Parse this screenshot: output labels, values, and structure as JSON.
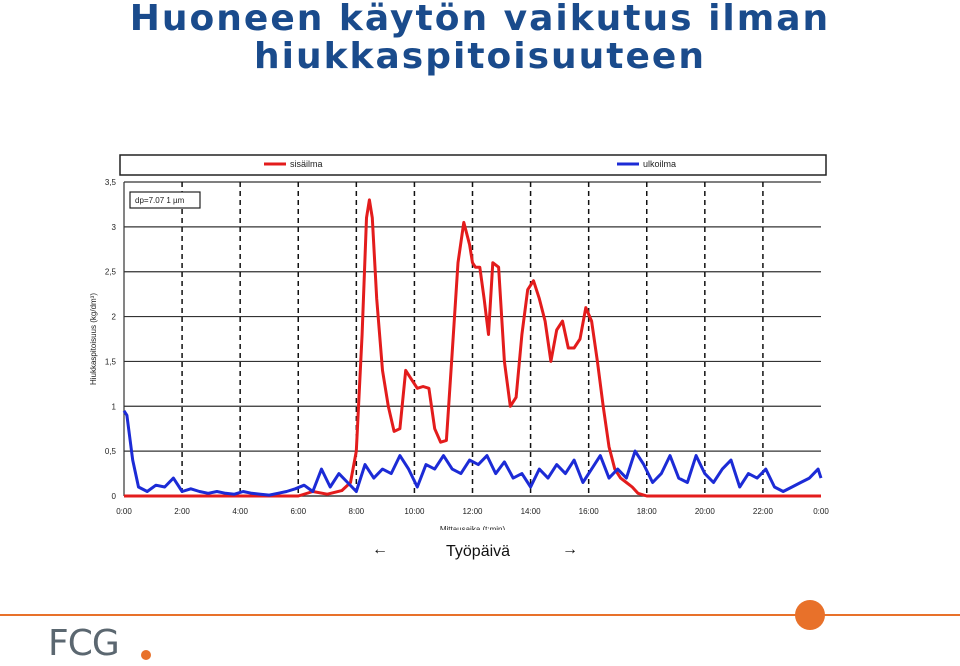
{
  "slide": {
    "title_line1": "Huoneen käytön vaikutus ilman",
    "title_line2": "hiukkaspitoisuuteen",
    "caption": "Työpäivä",
    "left_arrow": "←",
    "right_arrow": "→",
    "logo_text": "FCG"
  },
  "colors": {
    "title": "#1a4b8c",
    "sisailma": "#e31c1c",
    "ulkoilma": "#1c2bd6",
    "accent": "#e8712a"
  },
  "chart_data": {
    "type": "line",
    "ylabel": "Hiukkaspitoisuus (kg/dm³)",
    "xlabel": "Mittausaika (t:min)",
    "annotation": "dp=7.07 1 µm",
    "ylim": [
      0,
      3.5
    ],
    "xlim": [
      0,
      24
    ],
    "yticks": [
      "0",
      "0,5",
      "1",
      "1,5",
      "2",
      "2,5",
      "3",
      "3,5"
    ],
    "xticks": [
      "0:00",
      "2:00",
      "4:00",
      "6:00",
      "8:00",
      "10:00",
      "12:00",
      "14:00",
      "16:00",
      "18:00",
      "20:00",
      "22:00",
      "0:00"
    ],
    "grid": "horizontal solid, vertical dashed every 2 h",
    "legend_position": "top",
    "series": [
      {
        "name": "sisäilma",
        "color": "#e31c1c",
        "x": [
          0,
          2,
          4,
          5.5,
          6,
          6.5,
          7,
          7.5,
          7.8,
          8.0,
          8.2,
          8.35,
          8.45,
          8.55,
          8.7,
          8.9,
          9.1,
          9.3,
          9.5,
          9.7,
          9.9,
          10.1,
          10.3,
          10.5,
          10.7,
          10.9,
          11.1,
          11.3,
          11.5,
          11.7,
          11.9,
          12.0,
          12.1,
          12.25,
          12.4,
          12.55,
          12.7,
          12.9,
          13.1,
          13.3,
          13.5,
          13.7,
          13.9,
          14.1,
          14.3,
          14.5,
          14.7,
          14.9,
          15.1,
          15.3,
          15.5,
          15.7,
          15.9,
          16.1,
          16.3,
          16.5,
          16.7,
          16.9,
          17.1,
          17.3,
          17.5,
          17.7,
          18,
          19,
          20,
          21,
          22,
          23,
          24
        ],
        "y": [
          0,
          0,
          0,
          0,
          0,
          0.05,
          0.02,
          0.06,
          0.15,
          0.5,
          1.8,
          3.1,
          3.3,
          3.1,
          2.2,
          1.4,
          1.0,
          0.72,
          0.75,
          1.4,
          1.3,
          1.2,
          1.22,
          1.2,
          0.75,
          0.6,
          0.62,
          1.6,
          2.6,
          3.05,
          2.8,
          2.6,
          2.55,
          2.55,
          2.2,
          1.8,
          2.6,
          2.55,
          1.5,
          1.0,
          1.1,
          1.8,
          2.3,
          2.4,
          2.2,
          1.95,
          1.5,
          1.85,
          1.95,
          1.65,
          1.65,
          1.75,
          2.1,
          1.95,
          1.5,
          1.0,
          0.55,
          0.3,
          0.2,
          0.15,
          0.1,
          0.03,
          0,
          0,
          0,
          0,
          0,
          0,
          0
        ]
      },
      {
        "name": "ulkoilma",
        "color": "#1c2bd6",
        "x": [
          0,
          0.1,
          0.3,
          0.5,
          0.8,
          1.1,
          1.4,
          1.7,
          2.0,
          2.3,
          2.6,
          2.9,
          3.2,
          3.5,
          3.8,
          4.1,
          4.4,
          4.7,
          5.0,
          5.3,
          5.6,
          5.9,
          6.2,
          6.5,
          6.8,
          7.1,
          7.4,
          7.7,
          8.0,
          8.3,
          8.6,
          8.9,
          9.2,
          9.5,
          9.8,
          10.1,
          10.4,
          10.7,
          11.0,
          11.3,
          11.6,
          11.9,
          12.2,
          12.5,
          12.8,
          13.1,
          13.4,
          13.7,
          14.0,
          14.3,
          14.6,
          14.9,
          15.2,
          15.5,
          15.8,
          16.1,
          16.4,
          16.7,
          17.0,
          17.3,
          17.6,
          17.9,
          18.2,
          18.5,
          18.8,
          19.1,
          19.4,
          19.7,
          20.0,
          20.3,
          20.6,
          20.9,
          21.2,
          21.5,
          21.8,
          22.1,
          22.4,
          22.7,
          23.0,
          23.3,
          23.6,
          23.9,
          24.0
        ],
        "y": [
          0.95,
          0.9,
          0.4,
          0.1,
          0.05,
          0.12,
          0.1,
          0.2,
          0.05,
          0.08,
          0.05,
          0.03,
          0.05,
          0.03,
          0.02,
          0.05,
          0.03,
          0.02,
          0.01,
          0.03,
          0.05,
          0.08,
          0.12,
          0.05,
          0.3,
          0.1,
          0.25,
          0.15,
          0.05,
          0.35,
          0.2,
          0.3,
          0.25,
          0.45,
          0.3,
          0.1,
          0.35,
          0.3,
          0.45,
          0.3,
          0.25,
          0.4,
          0.35,
          0.45,
          0.25,
          0.38,
          0.2,
          0.25,
          0.1,
          0.3,
          0.2,
          0.35,
          0.25,
          0.4,
          0.15,
          0.3,
          0.45,
          0.2,
          0.3,
          0.2,
          0.5,
          0.35,
          0.15,
          0.25,
          0.45,
          0.2,
          0.15,
          0.45,
          0.25,
          0.15,
          0.3,
          0.4,
          0.1,
          0.25,
          0.2,
          0.3,
          0.1,
          0.05,
          0.1,
          0.15,
          0.2,
          0.3,
          0.2
        ]
      }
    ]
  }
}
